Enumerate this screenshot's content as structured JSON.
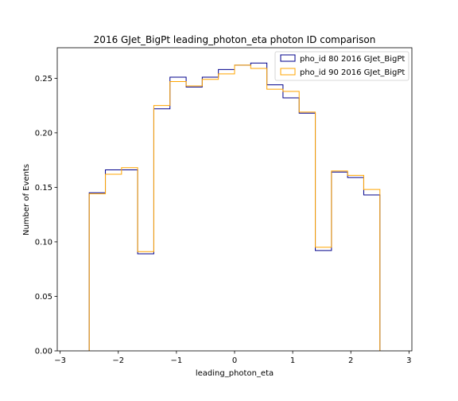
{
  "chart_data": {
    "type": "step-histogram",
    "title": "2016 GJet_BigPt leading_photon_eta photon ID comparison",
    "xlabel": "leading_photon_eta",
    "ylabel": "Number of Events",
    "xlim": [
      -3.05,
      3.05
    ],
    "ylim": [
      0,
      0.278
    ],
    "xticks": [
      -3,
      -2,
      -1,
      0,
      1,
      2,
      3
    ],
    "xtick_labels": [
      "−3",
      "−2",
      "−1",
      "0",
      "1",
      "2",
      "3"
    ],
    "yticks": [
      0,
      0.05,
      0.1,
      0.15,
      0.2,
      0.25
    ],
    "ytick_labels": [
      "0.00",
      "0.05",
      "0.10",
      "0.15",
      "0.20",
      "0.25"
    ],
    "grid": false,
    "legend_position": "top-right",
    "bin_edges": [
      -2.5,
      -2.222,
      -1.944,
      -1.667,
      -1.389,
      -1.111,
      -0.833,
      -0.556,
      -0.278,
      0.0,
      0.278,
      0.556,
      0.833,
      1.111,
      1.389,
      1.667,
      1.944,
      2.222,
      2.5
    ],
    "series": [
      {
        "name": "pho_id 80 2016 GJet_BigPt",
        "color": "#00008b",
        "values": [
          0.145,
          0.166,
          0.166,
          0.089,
          0.222,
          0.251,
          0.242,
          0.251,
          0.258,
          0.262,
          0.264,
          0.244,
          0.232,
          0.218,
          0.092,
          0.164,
          0.159,
          0.143
        ]
      },
      {
        "name": "pho_id 90 2016 GJet_BigPt",
        "color": "#ffa500",
        "values": [
          0.144,
          0.162,
          0.168,
          0.091,
          0.225,
          0.247,
          0.243,
          0.249,
          0.254,
          0.262,
          0.259,
          0.24,
          0.238,
          0.219,
          0.095,
          0.165,
          0.161,
          0.148
        ]
      }
    ]
  }
}
